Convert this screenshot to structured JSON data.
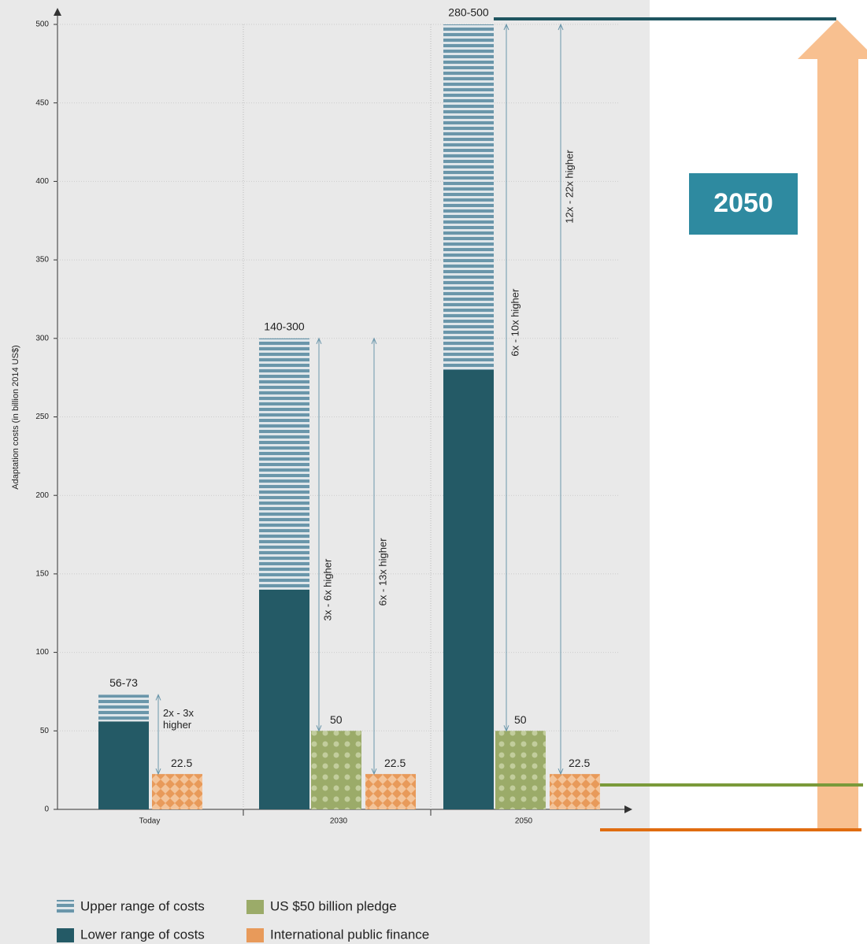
{
  "chart_data": {
    "type": "bar",
    "y_label": "Adaptation costs (in billion 2014 US$)",
    "categories": [
      "Today",
      "2030",
      "2050"
    ],
    "series": [
      {
        "name": "Lower range of costs",
        "color": "#245a66",
        "values": [
          56,
          140,
          280
        ]
      },
      {
        "name": "Upper range of costs",
        "color": "#6a96aa",
        "values": [
          73,
          300,
          500
        ],
        "value_labels": [
          "56-73",
          "140-300",
          "280-500"
        ]
      },
      {
        "name": "US $50 billion pledge",
        "color": "#9bab69",
        "values": [
          null,
          50,
          50
        ]
      },
      {
        "name": "International public finance",
        "color": "#e89a5a",
        "values": [
          22.5,
          22.5,
          22.5
        ]
      }
    ],
    "annotations": [
      "2x - 3x higher",
      "3x - 6x higher",
      "6x - 13x higher",
      "6x - 10x higher",
      "12x - 22x higher"
    ],
    "callout": "2050",
    "ylim": [
      0,
      500
    ],
    "yticks": [
      0,
      50,
      100,
      150,
      200,
      250,
      300,
      350,
      400,
      450,
      500
    ],
    "grid": true
  }
}
